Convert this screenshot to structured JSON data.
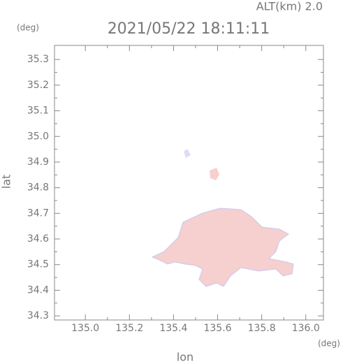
{
  "chart_data": {
    "type": "map",
    "title": "2021/05/22 18:11:11",
    "altitude_label": "ALT(km) 2.0",
    "x_label": "lon",
    "y_label": "lat",
    "x_unit": "(deg)",
    "y_unit": "(deg)",
    "xlim": [
      134.86,
      136.08
    ],
    "ylim": [
      34.284,
      35.355
    ],
    "xticks": [
      {
        "value": 135,
        "label": "135.0"
      },
      135.2,
      135.4,
      135.6,
      135.8,
      {
        "value": 136,
        "label": "136.0"
      }
    ],
    "yticks": [
      34.3,
      34.4,
      34.5,
      34.6,
      34.7,
      34.8,
      34.9,
      {
        "value": 35,
        "label": "35.0"
      },
      35.1,
      35.2,
      35.3
    ],
    "color": "#f6cfcf"
  }
}
